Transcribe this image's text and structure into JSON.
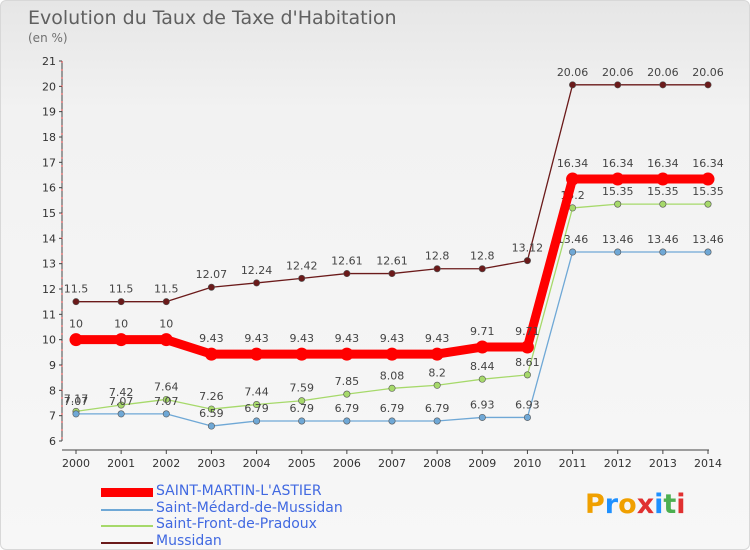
{
  "header": {
    "title": "Evolution du Taux de Taxe d'Habitation",
    "unit": "(en %)"
  },
  "logo": {
    "text": "Proxiti",
    "colors": [
      "#f0a000",
      "#1e90ff",
      "#f0a000",
      "#e03030",
      "#1e90ff",
      "#4caf50",
      "#e03030"
    ]
  },
  "chart_data": {
    "type": "line",
    "x": [
      "2000",
      "2001",
      "2002",
      "2003",
      "2004",
      "2005",
      "2006",
      "2007",
      "2008",
      "2009",
      "2010",
      "2011",
      "2012",
      "2013",
      "2014"
    ],
    "ylim": [
      6,
      21
    ],
    "yticks": [
      6,
      7,
      8,
      9,
      10,
      11,
      12,
      13,
      14,
      15,
      16,
      17,
      18,
      19,
      20,
      21
    ],
    "grid": false,
    "legend_position": "bottom-left",
    "series": [
      {
        "name": "Mussidan",
        "color": "#6b1a1a",
        "values": [
          11.5,
          11.5,
          11.5,
          12.07,
          12.24,
          12.42,
          12.61,
          12.61,
          12.8,
          12.8,
          13.12,
          20.06,
          20.06,
          20.06,
          20.06
        ],
        "labels": [
          "11.5",
          "11.5",
          "11.5",
          "12.07",
          "12.24",
          "12.42",
          "12.61",
          "12.61",
          "12.8",
          "12.8",
          "13.12",
          "20.06",
          "20.06",
          "20.06",
          "20.06"
        ]
      },
      {
        "name": "Saint-Front-de-Pradoux",
        "color": "#a6d96a",
        "values": [
          7.17,
          7.42,
          7.64,
          7.26,
          7.44,
          7.59,
          7.85,
          8.08,
          8.2,
          8.44,
          8.61,
          15.2,
          15.35,
          15.35,
          15.35
        ],
        "labels": [
          "7.17",
          "7.42",
          "7.64",
          "7.26",
          "7.44",
          "7.59",
          "7.85",
          "8.08",
          "8.2",
          "8.44",
          "8.61",
          "15.2",
          "15.35",
          "15.35",
          "15.35"
        ]
      },
      {
        "name": "Saint-Médard-de-Mussidan",
        "color": "#6fa8d6",
        "values": [
          7.07,
          7.07,
          7.07,
          6.59,
          6.79,
          6.79,
          6.79,
          6.79,
          6.79,
          6.93,
          6.93,
          13.46,
          13.46,
          13.46,
          13.46
        ],
        "labels": [
          "7.07",
          "7.07",
          "7.07",
          "6.59",
          "6.79",
          "6.79",
          "6.79",
          "6.79",
          "6.79",
          "6.93",
          "6.93",
          "13.46",
          "13.46",
          "13.46",
          "13.46"
        ]
      },
      {
        "name": "SAINT-MARTIN-L'ASTIER",
        "color": "#ff0000",
        "values": [
          10,
          10,
          10,
          9.43,
          9.43,
          9.43,
          9.43,
          9.43,
          9.43,
          9.71,
          9.71,
          16.34,
          16.34,
          16.34,
          16.34
        ],
        "labels": [
          "10",
          "10",
          "10",
          "9.43",
          "9.43",
          "9.43",
          "9.43",
          "9.43",
          "9.43",
          "9.71",
          "9.71",
          "16.34",
          "16.34",
          "16.34",
          "16.34"
        ]
      }
    ]
  },
  "legend": [
    {
      "name": "SAINT-MARTIN-L'ASTIER",
      "color": "#ff0000",
      "text_color": "#4169e1",
      "thick": true
    },
    {
      "name": "Saint-Médard-de-Mussidan",
      "color": "#6fa8d6",
      "text_color": "#4169e1",
      "thick": false
    },
    {
      "name": "Saint-Front-de-Pradoux",
      "color": "#a6d96a",
      "text_color": "#4169e1",
      "thick": false
    },
    {
      "name": "Mussidan",
      "color": "#6b1a1a",
      "text_color": "#4169e1",
      "thick": false
    }
  ]
}
